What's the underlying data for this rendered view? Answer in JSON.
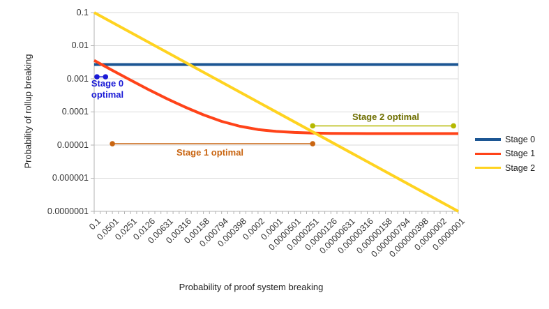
{
  "chart_data": {
    "type": "line",
    "title": "",
    "xlabel": "Probability of proof system breaking",
    "ylabel": "Probability of rollup breaking",
    "x_scale": "log",
    "y_scale": "log",
    "x_range": [
      0.1,
      1e-07
    ],
    "y_range": [
      0.1,
      1e-07
    ],
    "grid": "horizontal-major-only",
    "x_tick_labels": [
      "0.1",
      "0.0501",
      "0.0251",
      "0.0126",
      "0.00631",
      "0.00316",
      "0.00158",
      "0.000794",
      "0.000398",
      "0.0002",
      "0.0001",
      "0.0000501",
      "0.0000251",
      "0.0000126",
      "0.00000631",
      "0.00000316",
      "0.00000158",
      "0.000000794",
      "0.000000398",
      "0.0000002",
      "0.0000001"
    ],
    "y_tick_labels": [
      "0.1",
      "0.01",
      "0.001",
      "0.0001",
      "0.00001",
      "0.000001",
      "0.0000001"
    ],
    "series": [
      {
        "name": "Stage 0",
        "color": "#1c5693",
        "points": [
          [
            0.1,
            0.0027
          ],
          [
            1e-07,
            0.0027
          ]
        ]
      },
      {
        "name": "Stage 1",
        "color": "#ff4319",
        "points": [
          [
            0.1,
            0.0036
          ],
          [
            0.0501,
            0.0018
          ],
          [
            0.0251,
            0.00091
          ],
          [
            0.0126,
            0.00047
          ],
          [
            0.00631,
            0.00025
          ],
          [
            0.00316,
            0.00014
          ],
          [
            0.00158,
            8.2e-05
          ],
          [
            0.000794,
            5.2e-05
          ],
          [
            0.000398,
            3.7e-05
          ],
          [
            0.0002,
            2.95e-05
          ],
          [
            0.0001,
            2.58e-05
          ],
          [
            5.01e-05,
            2.4e-05
          ],
          [
            2.51e-05,
            2.3e-05
          ],
          [
            1.26e-05,
            2.26e-05
          ],
          [
            6.31e-06,
            2.24e-05
          ],
          [
            3.16e-06,
            2.23e-05
          ],
          [
            1e-07,
            2.22e-05
          ]
        ]
      },
      {
        "name": "Stage 2",
        "color": "#ffd320",
        "points": [
          [
            0.1,
            0.1
          ],
          [
            1e-07,
            1e-07
          ]
        ]
      }
    ],
    "annotations": [
      {
        "line1": "Stage 0",
        "line2": "optimal",
        "color": "#1a1ad6",
        "x_start": 0.09,
        "x_end": 0.065,
        "y": 0.00115
      },
      {
        "label": "Stage 1 optimal",
        "color": "#c96511",
        "x_start": 0.0501,
        "x_end": 2.51e-05,
        "y": 1.1e-05
      },
      {
        "label": "Stage 2 optimal",
        "color": "#b5b800",
        "text_color": "#6e6e00",
        "x_start": 2.51e-05,
        "x_end": 1.2e-07,
        "y": 3.8e-05
      }
    ],
    "legend": {
      "position": "right",
      "entries": [
        {
          "label": "Stage 0",
          "color": "#1c5693"
        },
        {
          "label": "Stage 1",
          "color": "#ff4319"
        },
        {
          "label": "Stage 2",
          "color": "#ffd320"
        }
      ]
    }
  }
}
